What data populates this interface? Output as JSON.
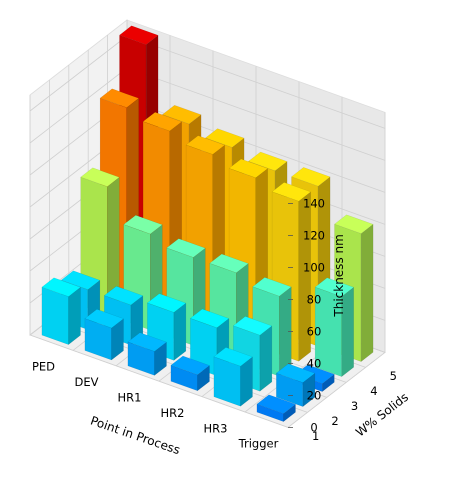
{
  "chart_data": {
    "type": "bar3d",
    "x_label": "Point in Process",
    "y_label": "W% Solids",
    "z_label": "Thickness nm",
    "x_categories": [
      "PED",
      "DEV",
      "HR1",
      "HR2",
      "HR3",
      "Trigger"
    ],
    "y_ticks": [
      "1",
      "2",
      "3",
      "4",
      "5"
    ],
    "z_ticks": [
      "0",
      "20",
      "40",
      "60",
      "80",
      "100",
      "120",
      "140"
    ],
    "z_range": [
      0,
      150
    ],
    "grid": true,
    "values_by_solids": [
      {
        "solids": "1",
        "values": [
          30,
          20,
          15,
          10,
          25,
          5
        ]
      },
      {
        "solids": "2",
        "values": [
          25,
          25,
          30,
          30,
          35,
          15
        ]
      },
      {
        "solids": "3",
        "values": [
          80,
          60,
          55,
          55,
          50,
          5
        ]
      },
      {
        "solids": "4",
        "values": [
          120,
          115,
          110,
          105,
          100,
          50
        ]
      },
      {
        "solids": "5",
        "values": [
          150,
          110,
          105,
          100,
          100,
          80
        ]
      }
    ]
  }
}
